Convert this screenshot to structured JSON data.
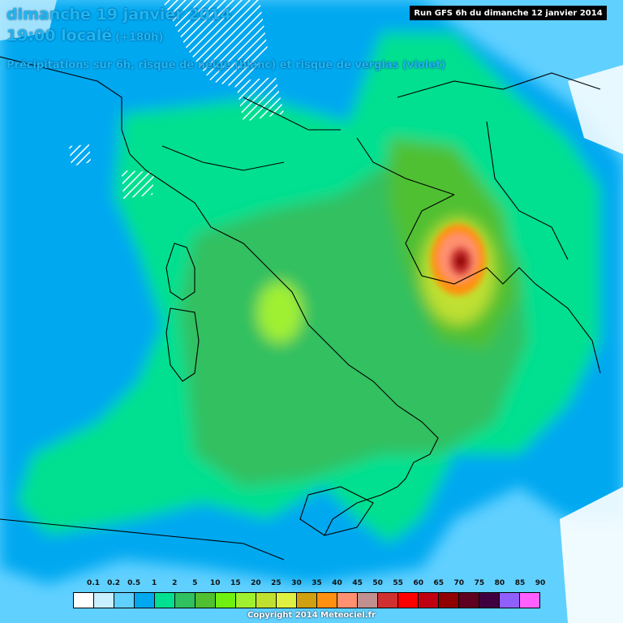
{
  "header": {
    "line1": "dimanche 19 janvier 2014",
    "line2": "19:00 localé",
    "line2_extra": "(+180h)",
    "line3": "Précipitations sur 6h, risque de neige (blanc) et risque de verglas (violet)"
  },
  "run_info": "Run GFS 6h du dimanche 12 janvier 2014",
  "legend": {
    "labels": [
      "0.1",
      "0.2",
      "0.5",
      "1",
      "2",
      "5",
      "10",
      "15",
      "20",
      "25",
      "30",
      "35",
      "40",
      "45",
      "50",
      "55",
      "60",
      "65",
      "70",
      "75",
      "80",
      "85",
      "90"
    ],
    "colors": [
      "#ffffff",
      "#c8f0ff",
      "#60d0ff",
      "#00a8f0",
      "#00e090",
      "#30c060",
      "#50c030",
      "#70f010",
      "#a0f030",
      "#c0e030",
      "#e0f040",
      "#d0a010",
      "#ff9010",
      "#ff9070",
      "#c09090",
      "#d03030",
      "#ff0000",
      "#c00010",
      "#900000",
      "#600020",
      "#400040",
      "#9060ff",
      "#ff60ff"
    ]
  },
  "copyright": "Copyright 2014 Meteociel.fr"
}
